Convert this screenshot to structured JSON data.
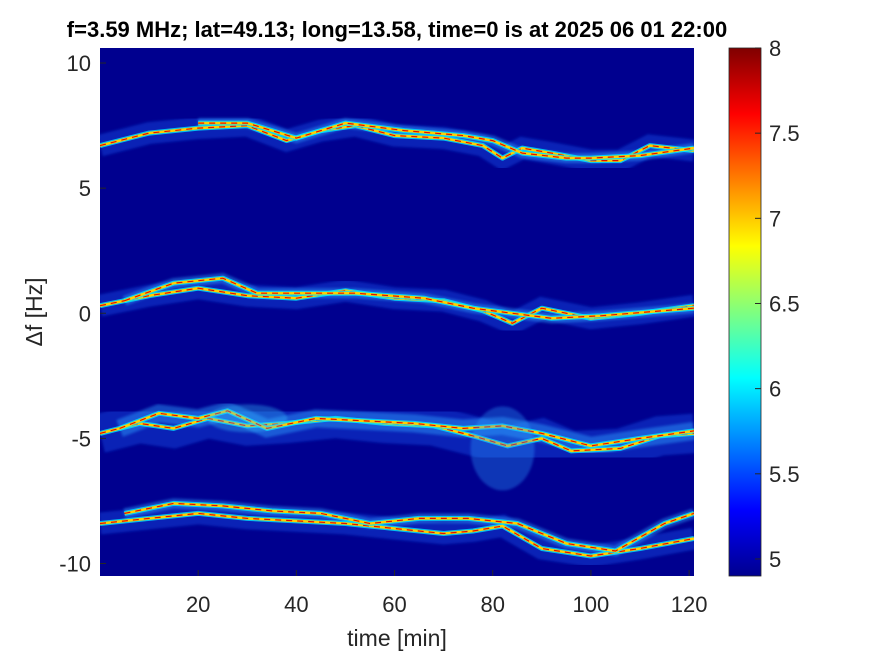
{
  "chart_data": {
    "type": "heatmap",
    "title": "f=3.59 MHz;  lat=49.13; long=13.58, time=0 is at 2025 06 01 22:00",
    "xlabel": "time [min]",
    "ylabel": "Δf [Hz]",
    "xlim": [
      0,
      121
    ],
    "ylim": [
      -10.5,
      10.6
    ],
    "x_ticks": [
      20,
      40,
      60,
      80,
      100,
      120
    ],
    "y_ticks": [
      -10,
      -5,
      0,
      5,
      10
    ],
    "colorbar": {
      "range": [
        4.9,
        8.0
      ],
      "ticks": [
        5,
        5.5,
        6,
        6.5,
        7,
        7.5,
        8
      ],
      "colormap": "jet"
    },
    "background_value": 4.9,
    "traces": [
      {
        "band": "upper",
        "lines": [
          [
            [
              0,
              6.7
            ],
            [
              10,
              7.2
            ],
            [
              20,
              7.4
            ],
            [
              30,
              7.5
            ],
            [
              38,
              6.9
            ],
            [
              45,
              7.3
            ],
            [
              52,
              7.5
            ],
            [
              60,
              7.1
            ],
            [
              70,
              7.0
            ],
            [
              78,
              6.7
            ],
            [
              82,
              6.2
            ],
            [
              86,
              6.6
            ],
            [
              92,
              6.4
            ],
            [
              100,
              6.1
            ],
            [
              106,
              6.1
            ],
            [
              112,
              6.7
            ],
            [
              121,
              6.5
            ]
          ],
          [
            [
              20,
              7.6
            ],
            [
              30,
              7.6
            ],
            [
              40,
              7.0
            ],
            [
              50,
              7.6
            ],
            [
              62,
              7.3
            ],
            [
              74,
              7.1
            ],
            [
              80,
              6.9
            ],
            [
              86,
              6.4
            ],
            [
              95,
              6.2
            ],
            [
              100,
              6.2
            ],
            [
              110,
              6.3
            ],
            [
              121,
              6.6
            ]
          ]
        ],
        "haze_y": 7.7
      },
      {
        "band": "zero",
        "lines": [
          [
            [
              0,
              0.3
            ],
            [
              10,
              0.7
            ],
            [
              20,
              1.0
            ],
            [
              30,
              0.7
            ],
            [
              40,
              0.6
            ],
            [
              50,
              0.9
            ],
            [
              60,
              0.6
            ],
            [
              70,
              0.5
            ],
            [
              78,
              0.1
            ],
            [
              84,
              -0.4
            ],
            [
              90,
              0.2
            ],
            [
              100,
              -0.2
            ],
            [
              110,
              0.0
            ],
            [
              121,
              0.3
            ]
          ],
          [
            [
              5,
              0.5
            ],
            [
              15,
              1.2
            ],
            [
              25,
              1.4
            ],
            [
              32,
              0.8
            ],
            [
              42,
              0.8
            ],
            [
              52,
              0.8
            ],
            [
              66,
              0.6
            ],
            [
              76,
              0.2
            ],
            [
              84,
              0.0
            ],
            [
              92,
              -0.2
            ],
            [
              102,
              -0.1
            ],
            [
              121,
              0.2
            ]
          ]
        ],
        "haze_y": 1.6
      },
      {
        "band": "minus5",
        "lines": [
          [
            [
              0,
              -4.8
            ],
            [
              8,
              -4.4
            ],
            [
              15,
              -4.6
            ],
            [
              22,
              -4.2
            ],
            [
              30,
              -4.5
            ],
            [
              38,
              -4.4
            ],
            [
              48,
              -4.2
            ],
            [
              58,
              -4.4
            ],
            [
              68,
              -4.5
            ],
            [
              76,
              -4.9
            ],
            [
              83,
              -5.3
            ],
            [
              90,
              -5.0
            ],
            [
              96,
              -5.5
            ],
            [
              106,
              -5.4
            ],
            [
              114,
              -4.9
            ],
            [
              121,
              -4.8
            ]
          ],
          [
            [
              4,
              -4.6
            ],
            [
              12,
              -4.0
            ],
            [
              20,
              -4.2
            ],
            [
              26,
              -3.9
            ],
            [
              34,
              -4.6
            ],
            [
              44,
              -4.2
            ],
            [
              54,
              -4.3
            ],
            [
              64,
              -4.4
            ],
            [
              74,
              -4.6
            ],
            [
              82,
              -4.5
            ],
            [
              90,
              -4.8
            ],
            [
              100,
              -5.3
            ],
            [
              110,
              -5.0
            ],
            [
              121,
              -4.7
            ]
          ]
        ],
        "haze_y": -3.6,
        "wide_haze": true
      },
      {
        "band": "minus9",
        "lines": [
          [
            [
              0,
              -8.4
            ],
            [
              10,
              -8.2
            ],
            [
              20,
              -8.0
            ],
            [
              30,
              -8.2
            ],
            [
              40,
              -8.3
            ],
            [
              50,
              -8.4
            ],
            [
              60,
              -8.6
            ],
            [
              70,
              -8.8
            ],
            [
              76,
              -8.7
            ],
            [
              82,
              -8.5
            ],
            [
              90,
              -9.4
            ],
            [
              100,
              -9.7
            ],
            [
              110,
              -9.4
            ],
            [
              121,
              -9.0
            ]
          ],
          [
            [
              5,
              -8.0
            ],
            [
              15,
              -7.6
            ],
            [
              25,
              -7.7
            ],
            [
              35,
              -7.9
            ],
            [
              45,
              -8.0
            ],
            [
              55,
              -8.4
            ],
            [
              65,
              -8.2
            ],
            [
              75,
              -8.2
            ],
            [
              85,
              -8.4
            ],
            [
              95,
              -9.2
            ],
            [
              105,
              -9.5
            ],
            [
              115,
              -8.4
            ],
            [
              121,
              -8.0
            ]
          ]
        ],
        "haze_y": -7.3
      }
    ]
  }
}
